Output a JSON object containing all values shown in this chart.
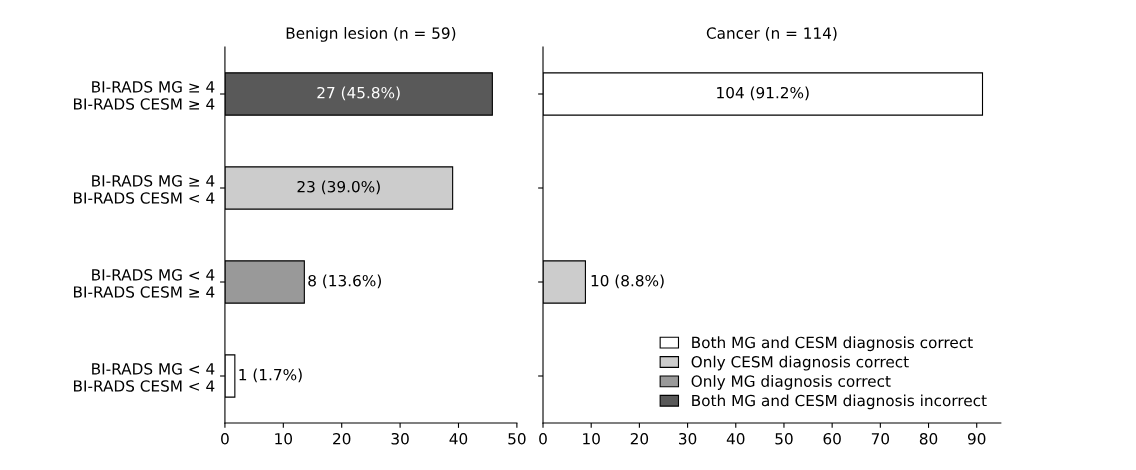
{
  "chart_data": [
    {
      "type": "bar",
      "orientation": "horizontal",
      "title": "Benign lesion (n = 59)",
      "categories": [
        "BI-RADS MG ≥ 4\nBI-RADS CESM ≥ 4",
        "BI-RADS MG ≥ 4\nBI-RADS CESM < 4",
        "BI-RADS MG < 4\nBI-RADS CESM ≥ 4",
        "BI-RADS MG < 4\nBI-RADS CESM < 4"
      ],
      "values": [
        45.8,
        39.0,
        13.6,
        1.7
      ],
      "colors": [
        "#595959",
        "#cccccc",
        "#999999",
        "#ffffff"
      ],
      "value_labels": [
        "27 (45.8%)",
        "23 (39.0%)",
        "8 (13.6%)",
        "1 (1.7%)"
      ],
      "xlim": [
        0,
        50
      ],
      "xticks": [
        0,
        10,
        20,
        30,
        40,
        50
      ],
      "grid": false,
      "legend": false
    },
    {
      "type": "bar",
      "orientation": "horizontal",
      "title": "Cancer (n = 114)",
      "categories": [
        null,
        null,
        null,
        null
      ],
      "series": [
        {
          "name": "Both MG and CESM diagnosis correct",
          "color": "#ffffff",
          "values": [
            91.2,
            null,
            null,
            null
          ],
          "value_labels": [
            "104 (91.2%)",
            null,
            null,
            null
          ]
        },
        {
          "name": "Only CESM diagnosis correct",
          "color": "#cccccc",
          "values": [
            null,
            null,
            8.8,
            null
          ],
          "value_labels": [
            null,
            null,
            "10 (8.8%)",
            null
          ]
        },
        {
          "name": "Only MG diagnosis correct",
          "color": "#999999",
          "values": [
            null,
            null,
            null,
            null
          ]
        },
        {
          "name": "Both MG and CESM diagnosis incorrect",
          "color": "#595959",
          "values": [
            null,
            null,
            null,
            null
          ]
        }
      ],
      "xlim": [
        0,
        95
      ],
      "xticks": [
        0,
        10,
        20,
        30,
        40,
        50,
        60,
        70,
        80,
        90
      ],
      "grid": false,
      "legend": "bottom right"
    }
  ]
}
